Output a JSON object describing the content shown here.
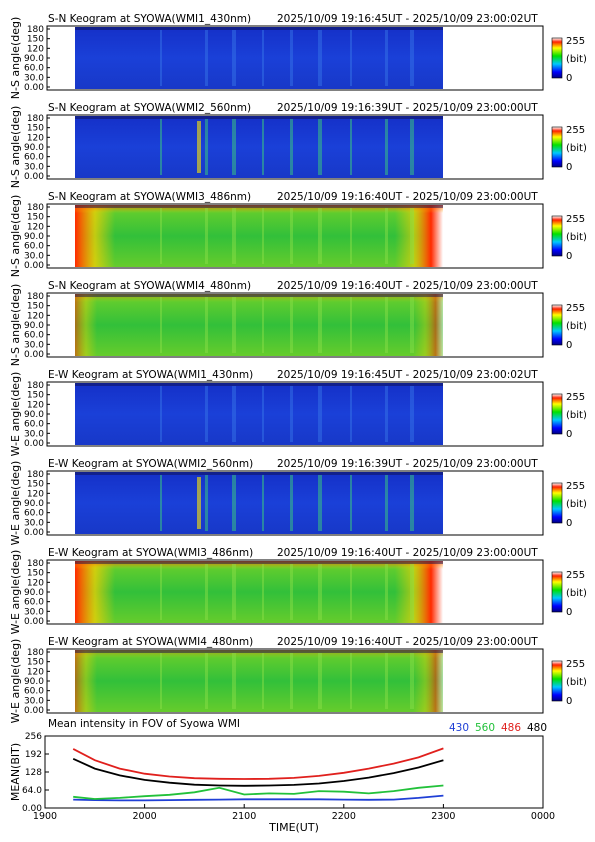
{
  "colorbar": {
    "max_label": "255",
    "unit_label": "(bit)",
    "min_label": "0"
  },
  "panels": [
    {
      "title": "S-N Keogram at SYOWA(WMI1_430nm)",
      "range": "2025/10/09 19:16:45UT - 2025/10/09 23:00:02UT",
      "ylabel": "N-S angle(deg)",
      "yticks": [
        "180",
        "150",
        "120",
        "90.0",
        "60.0",
        "30.0",
        "0.00"
      ],
      "channel": "430",
      "orientation": "N-S",
      "background": "blue",
      "edge_glow": "none"
    },
    {
      "title": "S-N Keogram at SYOWA(WMI2_560nm)",
      "range": "2025/10/09 19:16:39UT - 2025/10/09 23:00:00UT",
      "ylabel": "N-S angle(deg)",
      "yticks": [
        "180",
        "150",
        "120",
        "90.0",
        "60.0",
        "30.0",
        "0.00"
      ],
      "channel": "560",
      "orientation": "N-S",
      "background": "blue",
      "edge_glow": "none"
    },
    {
      "title": "S-N Keogram at SYOWA(WMI3_486nm)",
      "range": "2025/10/09 19:16:40UT - 2025/10/09 23:00:00UT",
      "ylabel": "N-S angle(deg)",
      "yticks": [
        "180",
        "150",
        "120",
        "90.0",
        "60.0",
        "30.0",
        "0.00"
      ],
      "channel": "486",
      "orientation": "N-S",
      "background": "green",
      "edge_glow": "strong"
    },
    {
      "title": "S-N Keogram at SYOWA(WMI4_480nm)",
      "range": "2025/10/09 19:16:40UT - 2025/10/09 23:00:00UT",
      "ylabel": "N-S angle(deg)",
      "yticks": [
        "180",
        "150",
        "120",
        "90.0",
        "60.0",
        "30.0",
        "0.00"
      ],
      "channel": "480",
      "orientation": "N-S",
      "background": "green",
      "edge_glow": "weak"
    },
    {
      "title": "E-W Keogram at SYOWA(WMI1_430nm)",
      "range": "2025/10/09 19:16:45UT - 2025/10/09 23:00:02UT",
      "ylabel": "W-E angle(deg)",
      "yticks": [
        "180",
        "150",
        "120",
        "90.0",
        "60.0",
        "30.0",
        "0.00"
      ],
      "channel": "430",
      "orientation": "W-E",
      "background": "blue",
      "edge_glow": "none"
    },
    {
      "title": "E-W Keogram at SYOWA(WMI2_560nm)",
      "range": "2025/10/09 19:16:39UT - 2025/10/09 23:00:00UT",
      "ylabel": "W-E angle(deg)",
      "yticks": [
        "180",
        "150",
        "120",
        "90.0",
        "60.0",
        "30.0",
        "0.00"
      ],
      "channel": "560",
      "orientation": "W-E",
      "background": "blue",
      "edge_glow": "none"
    },
    {
      "title": "E-W Keogram at SYOWA(WMI3_486nm)",
      "range": "2025/10/09 19:16:40UT - 2025/10/09 23:00:00UT",
      "ylabel": "W-E angle(deg)",
      "yticks": [
        "180",
        "150",
        "120",
        "90.0",
        "60.0",
        "30.0",
        "0.00"
      ],
      "channel": "486",
      "orientation": "W-E",
      "background": "green",
      "edge_glow": "strong"
    },
    {
      "title": "E-W Keogram at SYOWA(WMI4_480nm)",
      "range": "2025/10/09 19:16:40UT - 2025/10/09 23:00:00UT",
      "ylabel": "W-E angle(deg)",
      "yticks": [
        "180",
        "150",
        "120",
        "90.0",
        "60.0",
        "30.0",
        "0.00"
      ],
      "channel": "480",
      "orientation": "W-E",
      "background": "green",
      "edge_glow": "weak"
    }
  ],
  "chart_data": {
    "type": "line",
    "title": "Mean intensity in FOV of Syowa WMI",
    "xlabel": "TIME(UT)",
    "ylabel": "MEAN(BIT)",
    "x_ticks": [
      "1900",
      "2000",
      "2100",
      "2200",
      "2300",
      "0000"
    ],
    "y_ticks": [
      "256",
      "192",
      "128",
      "64.0",
      "0.00"
    ],
    "x_unit": "minutes after 19:00 UT",
    "xlim": [
      0,
      300
    ],
    "ylim": [
      0,
      256
    ],
    "grid": false,
    "legend_placement": "top-right",
    "x": [
      17,
      30,
      45,
      60,
      75,
      90,
      105,
      120,
      135,
      150,
      165,
      180,
      195,
      210,
      225,
      240
    ],
    "series": [
      {
        "name": "430",
        "color": "#1f3fd6",
        "values": [
          30,
          28,
          27,
          27,
          28,
          29,
          30,
          31,
          31,
          31,
          31,
          30,
          29,
          30,
          36,
          44
        ]
      },
      {
        "name": "560",
        "color": "#22c13a",
        "values": [
          40,
          32,
          36,
          42,
          47,
          56,
          72,
          48,
          52,
          50,
          60,
          58,
          52,
          60,
          72,
          80
        ]
      },
      {
        "name": "486",
        "color": "#e0201d",
        "values": [
          210,
          170,
          140,
          122,
          112,
          106,
          104,
          103,
          104,
          107,
          114,
          125,
          140,
          158,
          180,
          212
        ]
      },
      {
        "name": "480",
        "color": "#000000",
        "values": [
          175,
          140,
          116,
          100,
          90,
          83,
          80,
          79,
          80,
          82,
          87,
          96,
          108,
          124,
          144,
          170
        ]
      }
    ]
  }
}
